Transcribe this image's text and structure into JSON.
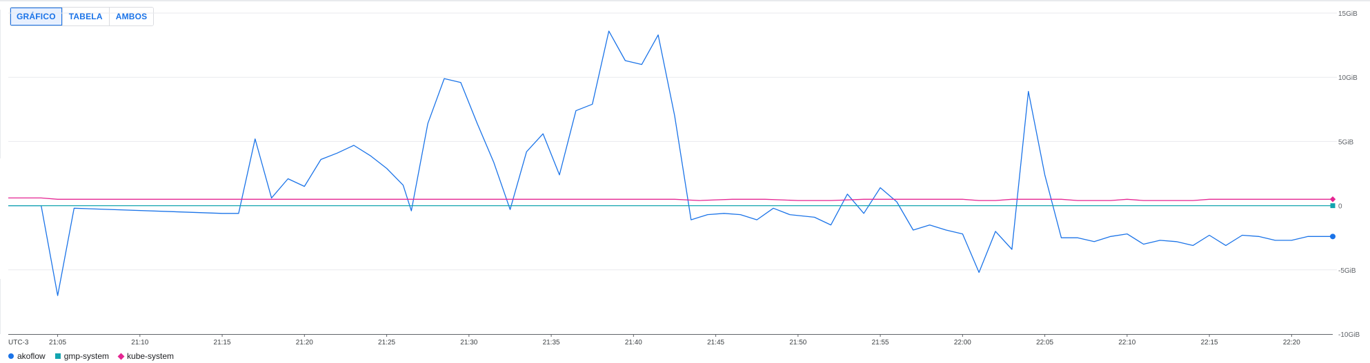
{
  "view_toggle": {
    "options": [
      "GRÁFICO",
      "TABELA",
      "AMBOS"
    ],
    "selected": "GRÁFICO"
  },
  "colors": {
    "akoflow": "#1a73e8",
    "gmp-system": "#12a4af",
    "kube-system": "#e52592",
    "grid": "#e8eaed",
    "axis": "#5f6368"
  },
  "chart_data": {
    "type": "line",
    "timezone_label": "UTC-3",
    "x_ticks": [
      "21:05",
      "21:10",
      "21:15",
      "21:20",
      "21:25",
      "21:30",
      "21:35",
      "21:40",
      "21:45",
      "21:50",
      "21:55",
      "22:00",
      "22:05",
      "22:10",
      "22:15",
      "22:20"
    ],
    "y_ticks": [
      "15GiB",
      "10GiB",
      "5GiB",
      "0",
      "-5GiB",
      "-10GiB"
    ],
    "y_tick_values": [
      15,
      10,
      5,
      0,
      -5,
      -10
    ],
    "ylim": [
      -10,
      15
    ],
    "xlim": [
      "21:02:00",
      "22:22:30"
    ],
    "y_axis_position": "right",
    "grid": true,
    "legend_position": "bottom-left",
    "series": [
      {
        "name": "akoflow",
        "marker": "circle",
        "points": [
          [
            "21:02:00",
            0.0
          ],
          [
            "21:04:00",
            0.0
          ],
          [
            "21:05:00",
            -7.0
          ],
          [
            "21:06:00",
            -0.2
          ],
          [
            "21:15:00",
            -0.6
          ],
          [
            "21:16:00",
            -0.6
          ],
          [
            "21:17:00",
            5.2
          ],
          [
            "21:18:00",
            0.6
          ],
          [
            "21:19:00",
            2.1
          ],
          [
            "21:20:00",
            1.5
          ],
          [
            "21:21:00",
            3.6
          ],
          [
            "21:22:00",
            4.1
          ],
          [
            "21:23:00",
            4.7
          ],
          [
            "21:24:00",
            3.9
          ],
          [
            "21:25:00",
            2.9
          ],
          [
            "21:26:00",
            1.6
          ],
          [
            "21:26:30",
            -0.4
          ],
          [
            "21:27:30",
            6.4
          ],
          [
            "21:28:30",
            9.9
          ],
          [
            "21:29:30",
            9.6
          ],
          [
            "21:30:30",
            6.4
          ],
          [
            "21:31:30",
            3.4
          ],
          [
            "21:32:30",
            -0.3
          ],
          [
            "21:33:30",
            4.2
          ],
          [
            "21:34:30",
            5.6
          ],
          [
            "21:35:30",
            2.4
          ],
          [
            "21:36:30",
            7.4
          ],
          [
            "21:37:30",
            7.9
          ],
          [
            "21:38:30",
            13.6
          ],
          [
            "21:39:30",
            11.3
          ],
          [
            "21:40:30",
            11.0
          ],
          [
            "21:41:30",
            13.3
          ],
          [
            "21:42:30",
            7.0
          ],
          [
            "21:43:30",
            -1.1
          ],
          [
            "21:44:30",
            -0.7
          ],
          [
            "21:45:30",
            -0.6
          ],
          [
            "21:46:30",
            -0.7
          ],
          [
            "21:47:30",
            -1.1
          ],
          [
            "21:48:30",
            -0.2
          ],
          [
            "21:49:30",
            -0.7
          ],
          [
            "21:51:00",
            -0.9
          ],
          [
            "21:52:00",
            -1.5
          ],
          [
            "21:53:00",
            0.9
          ],
          [
            "21:54:00",
            -0.6
          ],
          [
            "21:55:00",
            1.4
          ],
          [
            "21:56:00",
            0.3
          ],
          [
            "21:57:00",
            -1.9
          ],
          [
            "21:58:00",
            -1.5
          ],
          [
            "21:59:00",
            -1.9
          ],
          [
            "22:00:00",
            -2.2
          ],
          [
            "22:01:00",
            -5.2
          ],
          [
            "22:02:00",
            -2.0
          ],
          [
            "22:03:00",
            -3.4
          ],
          [
            "22:04:00",
            8.9
          ],
          [
            "22:05:00",
            2.4
          ],
          [
            "22:06:00",
            -2.5
          ],
          [
            "22:07:00",
            -2.5
          ],
          [
            "22:08:00",
            -2.8
          ],
          [
            "22:09:00",
            -2.4
          ],
          [
            "22:10:00",
            -2.2
          ],
          [
            "22:11:00",
            -3.0
          ],
          [
            "22:12:00",
            -2.7
          ],
          [
            "22:13:00",
            -2.8
          ],
          [
            "22:14:00",
            -3.1
          ],
          [
            "22:15:00",
            -2.3
          ],
          [
            "22:16:00",
            -3.1
          ],
          [
            "22:17:00",
            -2.3
          ],
          [
            "22:18:00",
            -2.4
          ],
          [
            "22:19:00",
            -2.7
          ],
          [
            "22:20:00",
            -2.7
          ],
          [
            "22:21:00",
            -2.4
          ],
          [
            "22:22:30",
            -2.4
          ]
        ]
      },
      {
        "name": "gmp-system",
        "marker": "square",
        "points": [
          [
            "21:02:00",
            0.0
          ],
          [
            "22:22:30",
            0.0
          ]
        ]
      },
      {
        "name": "kube-system",
        "marker": "diamond",
        "points": [
          [
            "21:02:00",
            0.6
          ],
          [
            "21:04:00",
            0.6
          ],
          [
            "21:05:00",
            0.5
          ],
          [
            "21:42:30",
            0.5
          ],
          [
            "21:44:00",
            0.4
          ],
          [
            "21:46:00",
            0.5
          ],
          [
            "21:48:00",
            0.5
          ],
          [
            "21:50:00",
            0.4
          ],
          [
            "21:52:00",
            0.4
          ],
          [
            "21:54:00",
            0.5
          ],
          [
            "22:00:00",
            0.5
          ],
          [
            "22:01:00",
            0.4
          ],
          [
            "22:02:00",
            0.4
          ],
          [
            "22:03:00",
            0.5
          ],
          [
            "22:06:00",
            0.5
          ],
          [
            "22:07:00",
            0.4
          ],
          [
            "22:09:00",
            0.4
          ],
          [
            "22:10:00",
            0.5
          ],
          [
            "22:11:00",
            0.4
          ],
          [
            "22:14:00",
            0.4
          ],
          [
            "22:15:00",
            0.5
          ],
          [
            "22:22:30",
            0.5
          ]
        ]
      }
    ]
  }
}
